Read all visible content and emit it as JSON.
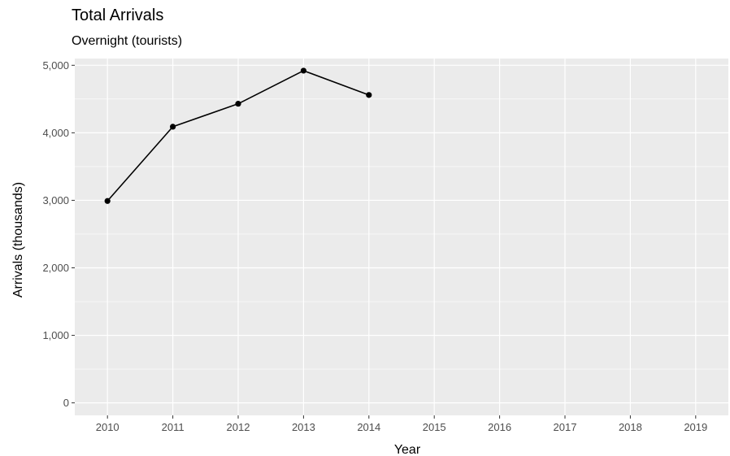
{
  "chart_data": {
    "type": "line",
    "title": "Total Arrivals",
    "subtitle": "Overnight (tourists)",
    "xlabel": "Year",
    "ylabel": "Arrivals (thousands)",
    "x_categories": [
      "2010",
      "2011",
      "2012",
      "2013",
      "2014",
      "2015",
      "2016",
      "2017",
      "2018",
      "2019"
    ],
    "series": [
      {
        "x": [
          "2010",
          "2011",
          "2012",
          "2013",
          "2014"
        ],
        "values": [
          2990,
          4090,
          4430,
          4920,
          4560
        ]
      }
    ],
    "yticks": [
      0,
      1000,
      2000,
      3000,
      4000,
      5000
    ],
    "ytick_labels": [
      "0",
      "1,000",
      "2,000",
      "3,000",
      "4,000",
      "5,000"
    ],
    "ylim": [
      -185,
      5100
    ],
    "grid": true,
    "legend": "none",
    "colors": {
      "panel": "#ebebeb",
      "grid": "#ffffff",
      "line": "#000000",
      "tick_text": "#4d4d4d"
    }
  }
}
